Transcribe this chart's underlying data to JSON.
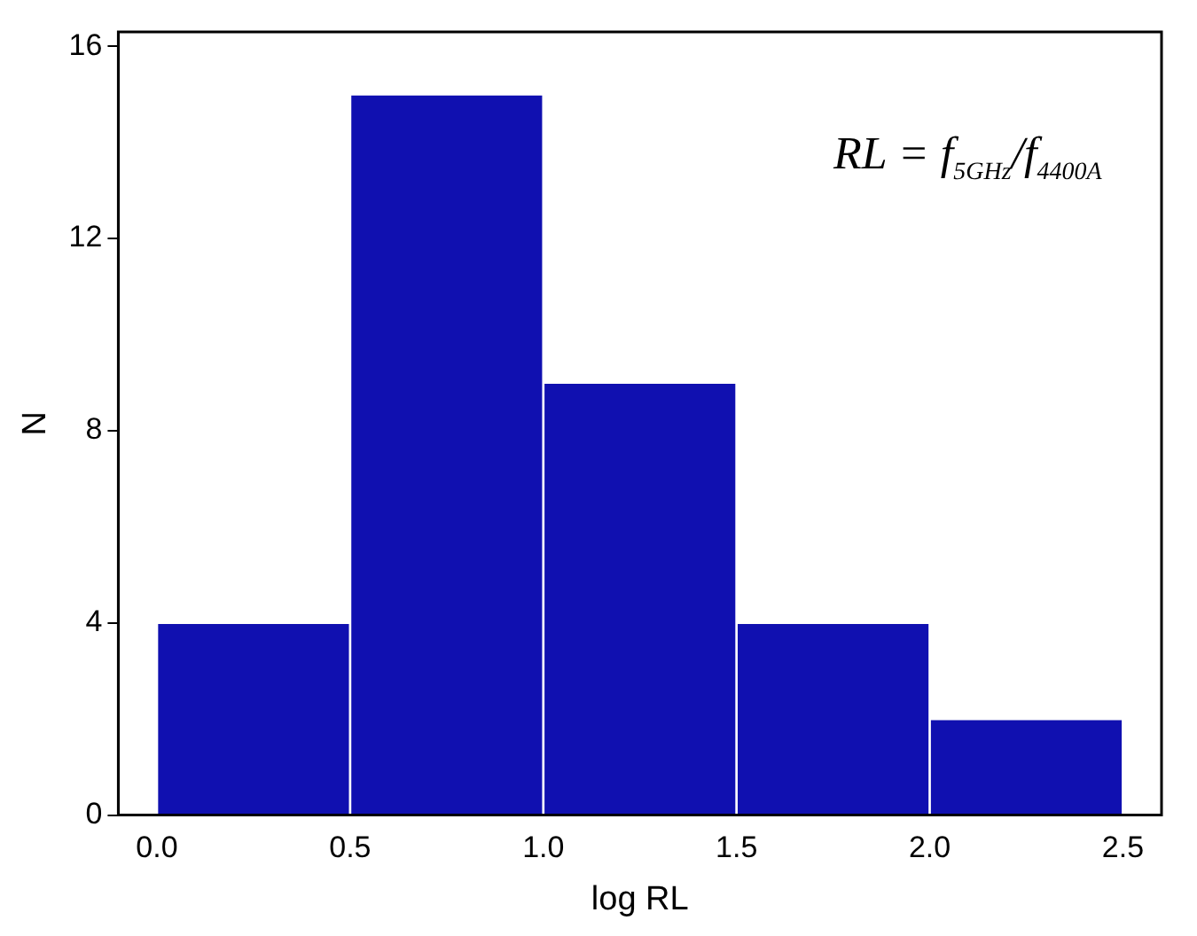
{
  "chart_data": {
    "type": "histogram",
    "bins": [
      0,
      0.5,
      1.0,
      1.5,
      2.0,
      2.5
    ],
    "values": [
      4,
      15,
      9,
      4,
      2
    ],
    "color": "#1010b0",
    "xlabel": "log RL",
    "ylabel": "N",
    "xlim": [
      -0.1,
      2.6
    ],
    "xticks": [
      {
        "value": 0,
        "label": "0.0"
      },
      {
        "value": 0.5,
        "label": "0.5"
      },
      {
        "value": 1,
        "label": "1.0"
      },
      {
        "value": 1.5,
        "label": "1.5"
      },
      {
        "value": 2,
        "label": "2.0"
      },
      {
        "value": 2.5,
        "label": "2.5"
      }
    ],
    "ylim": [
      0,
      16.3
    ],
    "yticks": [
      0,
      4,
      8,
      12,
      16
    ],
    "grid": false,
    "legend": false,
    "annotations": [
      "RL = f$_{5GHz}$/f$_{4400A}$"
    ]
  }
}
